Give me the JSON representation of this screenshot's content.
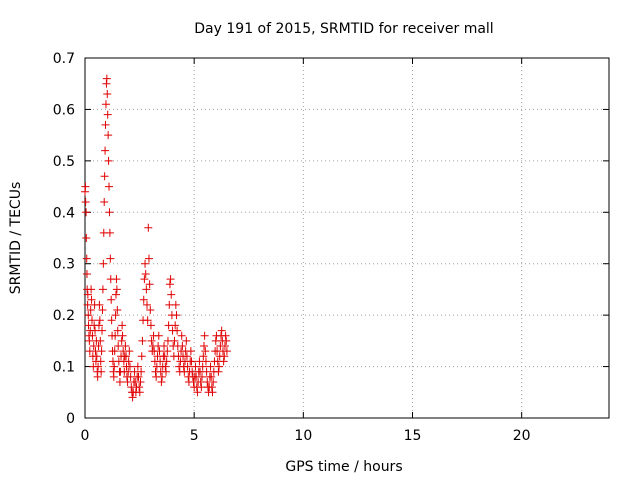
{
  "chart_data": {
    "type": "scatter",
    "title": "Day 191 of 2015, SRMTID for receiver mall",
    "xlabel": "GPS time / hours",
    "ylabel": "SRMTID / TECUs",
    "xlim": [
      0,
      24
    ],
    "ylim": [
      0,
      0.7
    ],
    "x_ticks": [
      0,
      5,
      10,
      15,
      20
    ],
    "x_tick_labels": [
      "0",
      "5",
      "10",
      "15",
      "20"
    ],
    "y_ticks": [
      0,
      0.1,
      0.2,
      0.3,
      0.4,
      0.5,
      0.6,
      0.7
    ],
    "y_tick_labels": [
      "0",
      "0.1",
      "0.2",
      "0.3",
      "0.4",
      "0.5",
      "0.6",
      "0.7"
    ],
    "grid": true,
    "marker": "+",
    "marker_color": "#e00000",
    "series": [
      {
        "name": "SRMTID",
        "points": [
          [
            0.0,
            0.44
          ],
          [
            0.02,
            0.45
          ],
          [
            0.03,
            0.42
          ],
          [
            0.05,
            0.4
          ],
          [
            0.06,
            0.35
          ],
          [
            0.08,
            0.31
          ],
          [
            0.09,
            0.28
          ],
          [
            0.1,
            0.25
          ],
          [
            0.12,
            0.22
          ],
          [
            0.13,
            0.24
          ],
          [
            0.15,
            0.2
          ],
          [
            0.16,
            0.18
          ],
          [
            0.18,
            0.16
          ],
          [
            0.2,
            0.15
          ],
          [
            0.22,
            0.13
          ],
          [
            0.24,
            0.17
          ],
          [
            0.26,
            0.21
          ],
          [
            0.28,
            0.25
          ],
          [
            0.3,
            0.23
          ],
          [
            0.32,
            0.19
          ],
          [
            0.34,
            0.16
          ],
          [
            0.36,
            0.12
          ],
          [
            0.38,
            0.1
          ],
          [
            0.4,
            0.14
          ],
          [
            0.42,
            0.18
          ],
          [
            0.44,
            0.22
          ],
          [
            0.46,
            0.17
          ],
          [
            0.48,
            0.13
          ],
          [
            0.5,
            0.11
          ],
          [
            0.52,
            0.15
          ],
          [
            0.54,
            0.12
          ],
          [
            0.56,
            0.09
          ],
          [
            0.58,
            0.08
          ],
          [
            0.6,
            0.1
          ],
          [
            0.62,
            0.14
          ],
          [
            0.64,
            0.18
          ],
          [
            0.66,
            0.22
          ],
          [
            0.68,
            0.19
          ],
          [
            0.7,
            0.15
          ],
          [
            0.72,
            0.11
          ],
          [
            0.74,
            0.09
          ],
          [
            0.76,
            0.13
          ],
          [
            0.78,
            0.17
          ],
          [
            0.8,
            0.21
          ],
          [
            0.82,
            0.25
          ],
          [
            0.84,
            0.3
          ],
          [
            0.86,
            0.36
          ],
          [
            0.88,
            0.42
          ],
          [
            0.9,
            0.47
          ],
          [
            0.92,
            0.52
          ],
          [
            0.94,
            0.57
          ],
          [
            0.96,
            0.61
          ],
          [
            0.98,
            0.65
          ],
          [
            1.0,
            0.66
          ],
          [
            1.02,
            0.63
          ],
          [
            1.04,
            0.59
          ],
          [
            1.06,
            0.55
          ],
          [
            1.08,
            0.5
          ],
          [
            1.1,
            0.45
          ],
          [
            1.12,
            0.4
          ],
          [
            1.14,
            0.36
          ],
          [
            1.16,
            0.31
          ],
          [
            1.18,
            0.27
          ],
          [
            1.2,
            0.23
          ],
          [
            1.22,
            0.19
          ],
          [
            1.24,
            0.16
          ],
          [
            1.26,
            0.13
          ],
          [
            1.28,
            0.11
          ],
          [
            1.3,
            0.09
          ],
          [
            1.32,
            0.08
          ],
          [
            1.34,
            0.1
          ],
          [
            1.36,
            0.13
          ],
          [
            1.38,
            0.16
          ],
          [
            1.4,
            0.2
          ],
          [
            1.42,
            0.24
          ],
          [
            1.44,
            0.27
          ],
          [
            1.46,
            0.25
          ],
          [
            1.48,
            0.21
          ],
          [
            1.5,
            0.17
          ],
          [
            1.52,
            0.14
          ],
          [
            1.55,
            0.11
          ],
          [
            1.58,
            0.09
          ],
          [
            1.6,
            0.07
          ],
          [
            1.62,
            0.09
          ],
          [
            1.65,
            0.12
          ],
          [
            1.68,
            0.15
          ],
          [
            1.7,
            0.18
          ],
          [
            1.72,
            0.16
          ],
          [
            1.75,
            0.13
          ],
          [
            1.78,
            0.11
          ],
          [
            1.8,
            0.09
          ],
          [
            1.82,
            0.12
          ],
          [
            1.85,
            0.14
          ],
          [
            1.88,
            0.12
          ],
          [
            1.9,
            0.1
          ],
          [
            1.92,
            0.08
          ],
          [
            1.95,
            0.07
          ],
          [
            1.98,
            0.09
          ],
          [
            2.0,
            0.11
          ],
          [
            2.03,
            0.13
          ],
          [
            2.06,
            0.1
          ],
          [
            2.09,
            0.08
          ],
          [
            2.12,
            0.06
          ],
          [
            2.15,
            0.05
          ],
          [
            2.18,
            0.04
          ],
          [
            2.21,
            0.05
          ],
          [
            2.24,
            0.07
          ],
          [
            2.27,
            0.09
          ],
          [
            2.3,
            0.07
          ],
          [
            2.33,
            0.05
          ],
          [
            2.36,
            0.06
          ],
          [
            2.39,
            0.08
          ],
          [
            2.42,
            0.1
          ],
          [
            2.45,
            0.08
          ],
          [
            2.48,
            0.06
          ],
          [
            2.51,
            0.05
          ],
          [
            2.54,
            0.07
          ],
          [
            2.57,
            0.09
          ],
          [
            2.6,
            0.12
          ],
          [
            2.63,
            0.15
          ],
          [
            2.66,
            0.19
          ],
          [
            2.69,
            0.23
          ],
          [
            2.72,
            0.27
          ],
          [
            2.75,
            0.3
          ],
          [
            2.78,
            0.28
          ],
          [
            2.81,
            0.25
          ],
          [
            2.84,
            0.22
          ],
          [
            2.87,
            0.19
          ],
          [
            2.9,
            0.37
          ],
          [
            2.93,
            0.31
          ],
          [
            2.96,
            0.26
          ],
          [
            2.99,
            0.21
          ],
          [
            3.02,
            0.18
          ],
          [
            3.05,
            0.15
          ],
          [
            3.08,
            0.13
          ],
          [
            3.11,
            0.14
          ],
          [
            3.14,
            0.16
          ],
          [
            3.17,
            0.13
          ],
          [
            3.2,
            0.11
          ],
          [
            3.23,
            0.09
          ],
          [
            3.26,
            0.08
          ],
          [
            3.29,
            0.1
          ],
          [
            3.32,
            0.12
          ],
          [
            3.35,
            0.14
          ],
          [
            3.38,
            0.16
          ],
          [
            3.41,
            0.13
          ],
          [
            3.44,
            0.11
          ],
          [
            3.47,
            0.09
          ],
          [
            3.5,
            0.07
          ],
          [
            3.53,
            0.08
          ],
          [
            3.56,
            0.1
          ],
          [
            3.59,
            0.12
          ],
          [
            3.62,
            0.14
          ],
          [
            3.65,
            0.12
          ],
          [
            3.68,
            0.1
          ],
          [
            3.71,
            0.09
          ],
          [
            3.74,
            0.11
          ],
          [
            3.77,
            0.13
          ],
          [
            3.8,
            0.15
          ],
          [
            3.83,
            0.18
          ],
          [
            3.86,
            0.22
          ],
          [
            3.89,
            0.26
          ],
          [
            3.92,
            0.27
          ],
          [
            3.95,
            0.24
          ],
          [
            3.98,
            0.2
          ],
          [
            4.01,
            0.17
          ],
          [
            4.04,
            0.14
          ],
          [
            4.07,
            0.12
          ],
          [
            4.1,
            0.15
          ],
          [
            4.13,
            0.18
          ],
          [
            4.16,
            0.22
          ],
          [
            4.19,
            0.2
          ],
          [
            4.22,
            0.17
          ],
          [
            4.25,
            0.14
          ],
          [
            4.28,
            0.12
          ],
          [
            4.31,
            0.1
          ],
          [
            4.34,
            0.09
          ],
          [
            4.37,
            0.11
          ],
          [
            4.4,
            0.13
          ],
          [
            4.43,
            0.16
          ],
          [
            4.46,
            0.14
          ],
          [
            4.49,
            0.12
          ],
          [
            4.52,
            0.1
          ],
          [
            4.55,
            0.09
          ],
          [
            4.58,
            0.11
          ],
          [
            4.61,
            0.13
          ],
          [
            4.64,
            0.15
          ],
          [
            4.67,
            0.12
          ],
          [
            4.7,
            0.1
          ],
          [
            4.73,
            0.08
          ],
          [
            4.76,
            0.07
          ],
          [
            4.79,
            0.09
          ],
          [
            4.82,
            0.11
          ],
          [
            4.85,
            0.13
          ],
          [
            4.88,
            0.11
          ],
          [
            4.91,
            0.09
          ],
          [
            4.94,
            0.08
          ],
          [
            4.97,
            0.07
          ],
          [
            5.0,
            0.06
          ],
          [
            5.03,
            0.08
          ],
          [
            5.06,
            0.1
          ],
          [
            5.09,
            0.08
          ],
          [
            5.12,
            0.06
          ],
          [
            5.15,
            0.05
          ],
          [
            5.18,
            0.07
          ],
          [
            5.21,
            0.09
          ],
          [
            5.24,
            0.11
          ],
          [
            5.27,
            0.09
          ],
          [
            5.3,
            0.07
          ],
          [
            5.33,
            0.06
          ],
          [
            5.36,
            0.08
          ],
          [
            5.39,
            0.1
          ],
          [
            5.42,
            0.12
          ],
          [
            5.45,
            0.14
          ],
          [
            5.48,
            0.16
          ],
          [
            5.51,
            0.13
          ],
          [
            5.54,
            0.11
          ],
          [
            5.57,
            0.09
          ],
          [
            5.6,
            0.07
          ],
          [
            5.63,
            0.06
          ],
          [
            5.66,
            0.05
          ],
          [
            5.69,
            0.06
          ],
          [
            5.72,
            0.08
          ],
          [
            5.75,
            0.1
          ],
          [
            5.78,
            0.08
          ],
          [
            5.81,
            0.06
          ],
          [
            5.84,
            0.05
          ],
          [
            5.87,
            0.07
          ],
          [
            5.9,
            0.09
          ],
          [
            5.93,
            0.11
          ],
          [
            5.96,
            0.13
          ],
          [
            5.99,
            0.15
          ],
          [
            6.02,
            0.16
          ],
          [
            6.05,
            0.13
          ],
          [
            6.08,
            0.11
          ],
          [
            6.11,
            0.09
          ],
          [
            6.14,
            0.1
          ],
          [
            6.17,
            0.12
          ],
          [
            6.2,
            0.14
          ],
          [
            6.23,
            0.16
          ],
          [
            6.26,
            0.17
          ],
          [
            6.29,
            0.15
          ],
          [
            6.32,
            0.13
          ],
          [
            6.35,
            0.11
          ],
          [
            6.38,
            0.12
          ],
          [
            6.41,
            0.14
          ],
          [
            6.44,
            0.16
          ],
          [
            6.47,
            0.15
          ],
          [
            6.5,
            0.13
          ]
        ]
      }
    ]
  }
}
